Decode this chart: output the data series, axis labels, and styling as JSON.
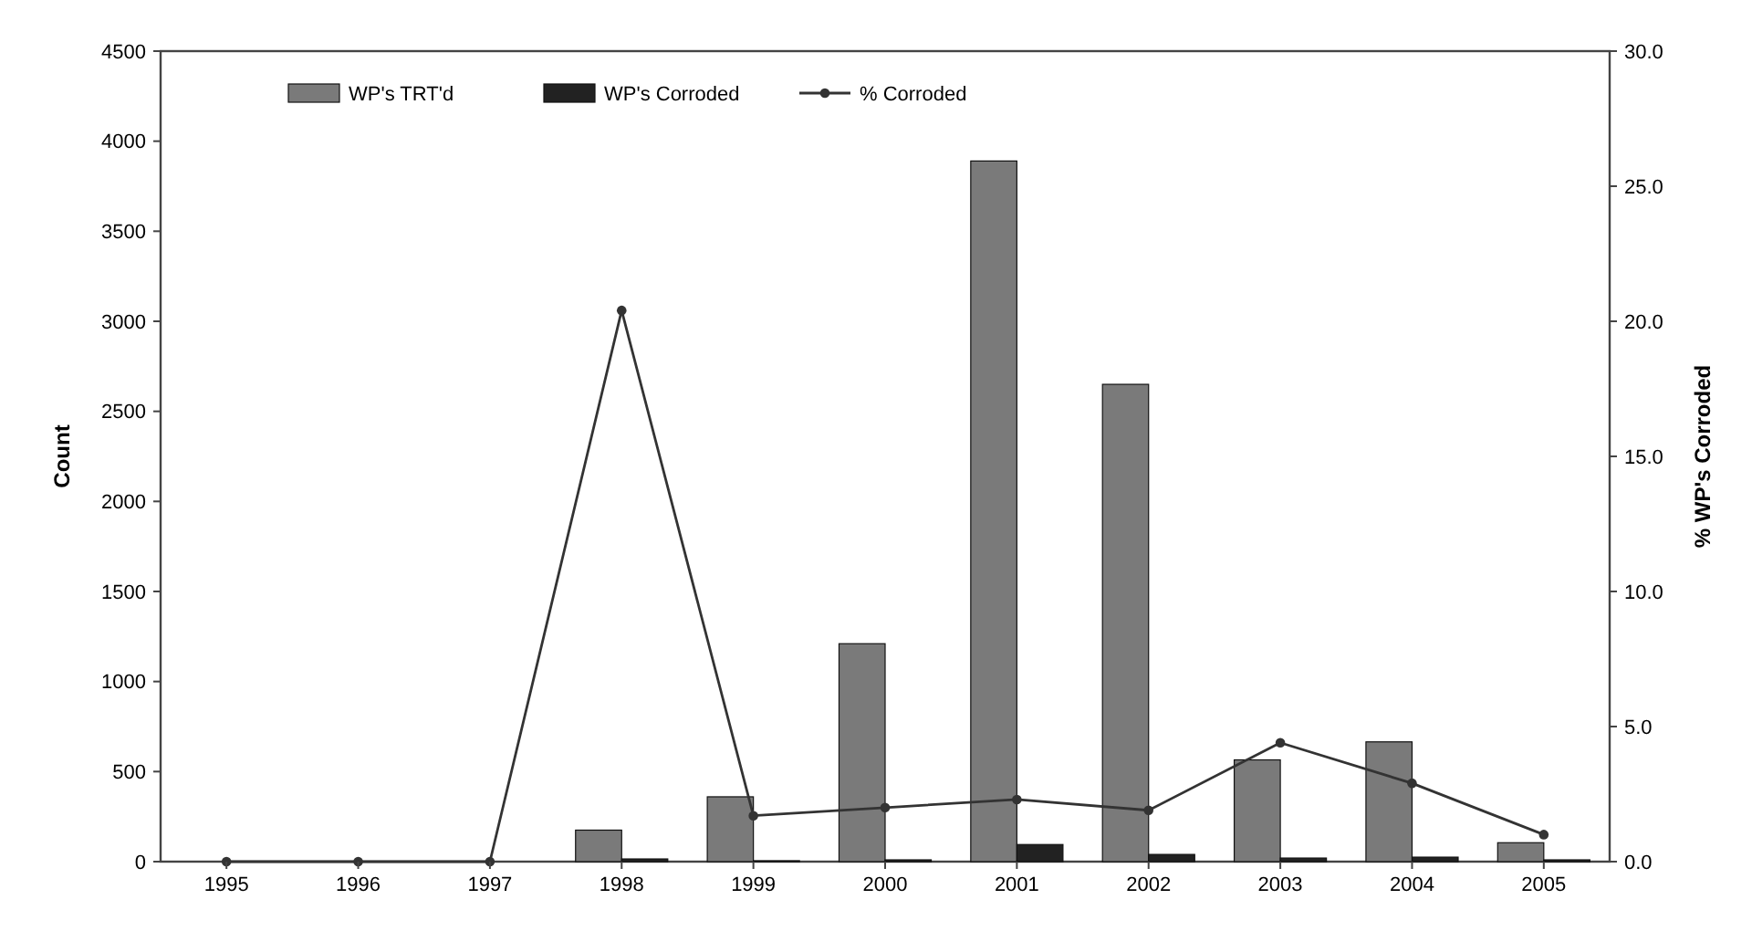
{
  "chart_data": {
    "type": "bar",
    "categories": [
      "1995",
      "1996",
      "1997",
      "1998",
      "1999",
      "2000",
      "2001",
      "2002",
      "2003",
      "2004",
      "2005"
    ],
    "ylabel": "Count",
    "y2label": "% WP's Corroded",
    "ylim": [
      0,
      4500
    ],
    "yticks": [
      0,
      500,
      1000,
      1500,
      2000,
      2500,
      3000,
      3500,
      4000,
      4500
    ],
    "y2lim": [
      0,
      30
    ],
    "y2ticks": [
      {
        "value": 0,
        "label": "0.0"
      },
      {
        "value": 5,
        "label": "5.0"
      },
      {
        "value": 10,
        "label": "10.0"
      },
      {
        "value": 15,
        "label": "15.0"
      },
      {
        "value": 20,
        "label": "20.0"
      },
      {
        "value": 25,
        "label": "25.0"
      },
      {
        "value": 30,
        "label": "30.0"
      }
    ],
    "series": [
      {
        "name": "WP's TRT'd",
        "color": "#7a7a7a",
        "values": [
          0,
          0,
          0,
          175,
          360,
          1210,
          3890,
          2650,
          565,
          665,
          105
        ]
      },
      {
        "name": "WP's Corroded",
        "color": "#222222",
        "values": [
          0,
          0,
          0,
          15,
          5,
          10,
          95,
          40,
          20,
          25,
          10
        ]
      },
      {
        "name": "% Corroded",
        "type": "line",
        "axis": "y2",
        "color": "#333333",
        "values": [
          0,
          0,
          0,
          20.4,
          1.7,
          2.0,
          2.3,
          1.9,
          4.4,
          2.9,
          1.0
        ]
      }
    ],
    "legend": "top",
    "marker": "circle",
    "grid": false
  }
}
